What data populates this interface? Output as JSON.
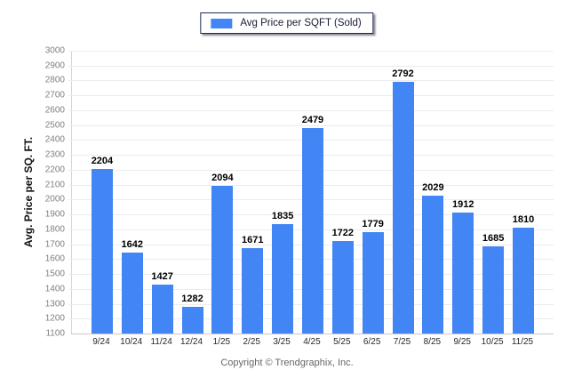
{
  "legend": {
    "label": "Avg Price per SQFT (Sold)",
    "swatch_color": "#4285F4"
  },
  "y_axis": {
    "title": "Avg. Price per SQ. FT.",
    "min": 1100,
    "max": 3000,
    "step": 100
  },
  "footer": {
    "copyright": "Copyright © Trendgraphix, Inc."
  },
  "colors": {
    "bar": "#4285F4",
    "gridline": "#ececec",
    "axis_line": "#c9c9c9",
    "y_tick_label": "#808080",
    "x_label": "#26282e",
    "value_label": "#000000",
    "legend_border": "#1f2d54"
  },
  "chart_data": {
    "type": "bar",
    "categories": [
      "9/24",
      "10/24",
      "11/24",
      "12/24",
      "1/25",
      "2/25",
      "3/25",
      "4/25",
      "5/25",
      "6/25",
      "7/25",
      "8/25",
      "9/25",
      "10/25",
      "11/25"
    ],
    "values": [
      2204,
      1642,
      1427,
      1282,
      2094,
      1671,
      1835,
      2479,
      1722,
      1779,
      2792,
      2029,
      1912,
      1685,
      1810
    ],
    "title": "",
    "xlabel": "",
    "ylabel": "Avg. Price per SQ. FT.",
    "ylim": [
      1100,
      3000
    ],
    "ytick_step": 100,
    "grid": true,
    "legend_entries": [
      "Avg Price per SQFT (Sold)"
    ],
    "legend_position": "top",
    "value_labels": true
  }
}
